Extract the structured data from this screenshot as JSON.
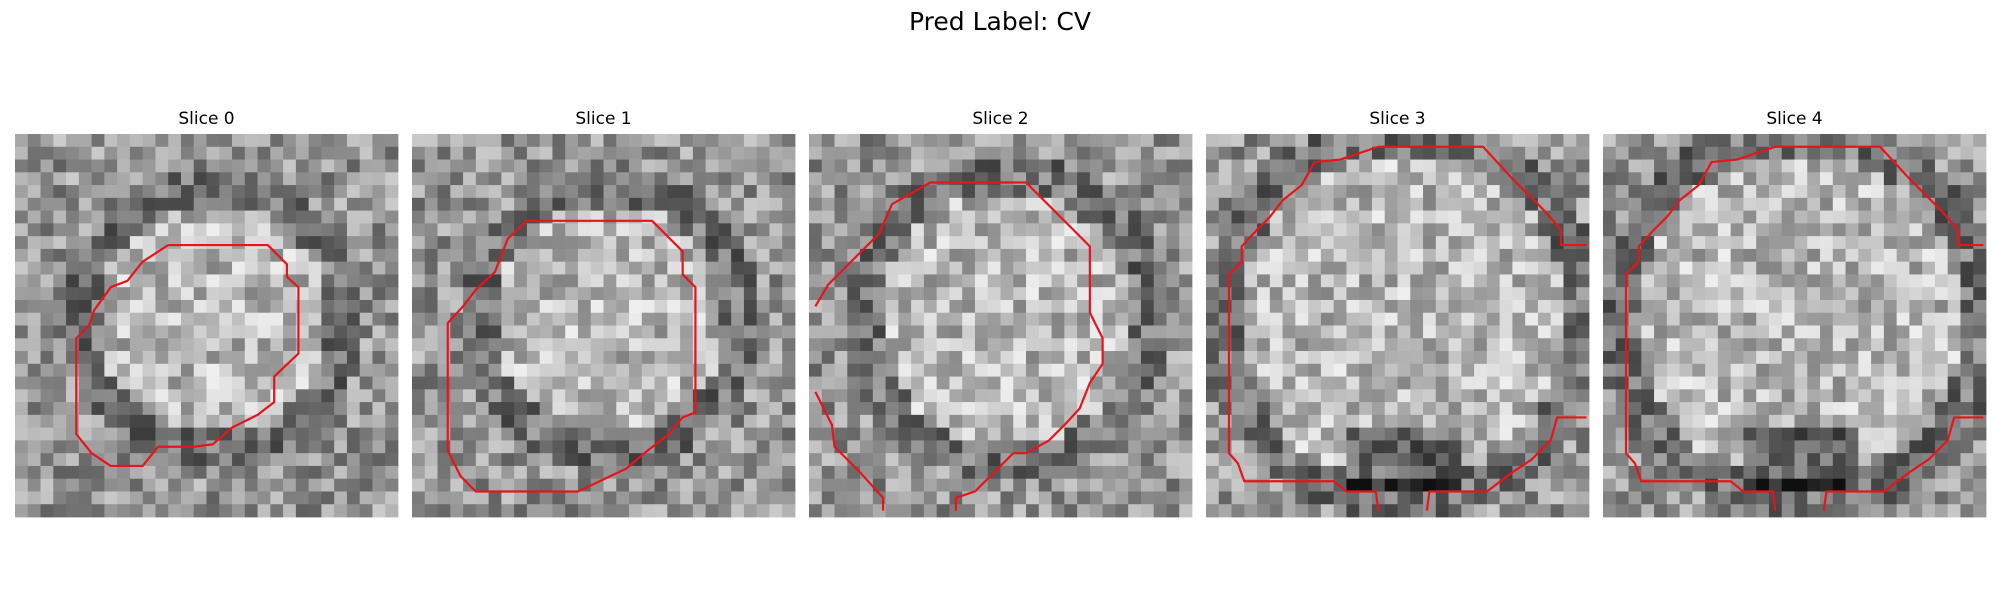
{
  "title": "Pred Label: CV",
  "panels": [
    {
      "title": "Slice 0"
    },
    {
      "title": "Slice 1"
    },
    {
      "title": "Slice 2"
    },
    {
      "title": "Slice 3"
    },
    {
      "title": "Slice 4"
    }
  ]
}
